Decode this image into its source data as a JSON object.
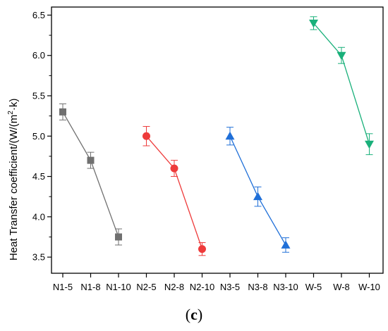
{
  "chart_data": {
    "type": "scatter",
    "categories": [
      "N1-5",
      "N1-8",
      "N1-10",
      "N2-5",
      "N2-8",
      "N2-10",
      "N3-5",
      "N3-8",
      "N3-10",
      "W-5",
      "W-8",
      "W-10"
    ],
    "ylabel_parts": [
      "Heat Transfer coefficient/(W/(m",
      "2",
      "·k)"
    ],
    "ylim": [
      3.3,
      6.6
    ],
    "yticks": [
      "3.5",
      "4.0",
      "4.5",
      "5.0",
      "5.5",
      "6.0",
      "6.5"
    ],
    "ytick_values": [
      3.5,
      4.0,
      4.5,
      5.0,
      5.5,
      6.0,
      6.5
    ],
    "grid": false,
    "series": [
      {
        "marker": "square",
        "color": "#707070",
        "start_index": 0,
        "values": [
          5.3,
          4.7,
          3.75
        ],
        "errors": [
          0.1,
          0.1,
          0.1
        ]
      },
      {
        "marker": "circle",
        "color": "#ee3b3b",
        "start_index": 3,
        "values": [
          5.0,
          4.6,
          3.6
        ],
        "errors": [
          0.12,
          0.1,
          0.08
        ]
      },
      {
        "marker": "triangle-up",
        "color": "#1f6fd8",
        "start_index": 6,
        "values": [
          5.0,
          4.25,
          3.65
        ],
        "errors": [
          0.11,
          0.12,
          0.09
        ]
      },
      {
        "marker": "triangle-down",
        "color": "#19b07a",
        "start_index": 9,
        "values": [
          6.4,
          6.0,
          4.9
        ],
        "errors": [
          0.08,
          0.1,
          0.13
        ]
      }
    ]
  },
  "panel_label": {
    "open": "(",
    "letter": "c",
    "close": ")"
  }
}
